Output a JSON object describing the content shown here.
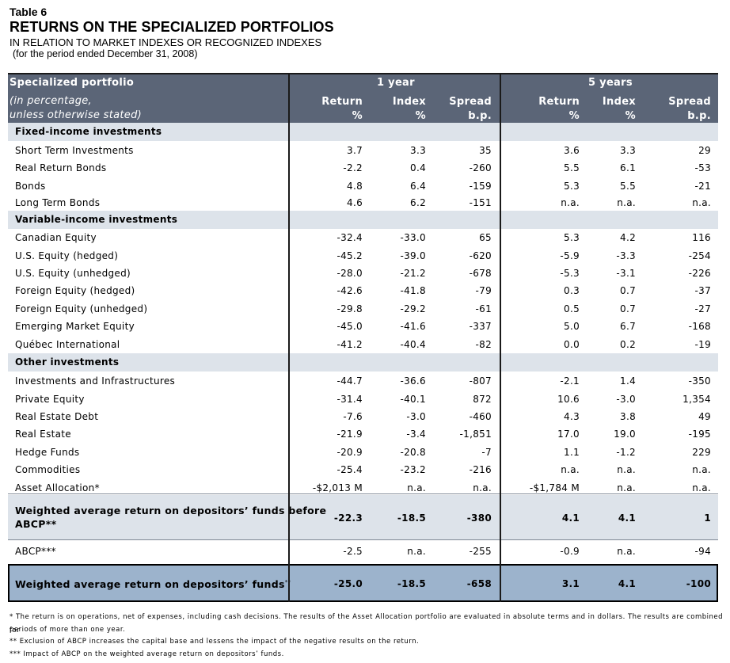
{
  "header": {
    "table_label": "Table 6",
    "title": "RETURNS ON THE SPECIALIZED PORTFOLIOS",
    "subtitle": "IN RELATION TO MARKET INDEXES OR RECOGNIZED INDEXES",
    "period": "(for the period ended December 31, 2008)"
  },
  "columns": {
    "portfolio_header": "Specialized portfolio",
    "units_line1": "(in percentage,",
    "units_line2": "unless otherwise stated)",
    "group1": "1 year",
    "group2": "5 years",
    "return": "Return",
    "index": "Index",
    "spread": "Spread",
    "pct": "%",
    "bp": "b.p."
  },
  "sections": [
    {
      "title": "Fixed-income investments",
      "rows": [
        {
          "name": "Short Term Investments",
          "values": [
            "3.7",
            "3.3",
            "35",
            "3.6",
            "3.3",
            "29"
          ]
        },
        {
          "name": "Real Return Bonds",
          "values": [
            "-2.2",
            "0.4",
            "-260",
            "5.5",
            "6.1",
            "-53"
          ]
        },
        {
          "name": "Bonds",
          "values": [
            "4.8",
            "6.4",
            "-159",
            "5.3",
            "5.5",
            "-21"
          ]
        },
        {
          "name": "Long Term Bonds",
          "values": [
            "4.6",
            "6.2",
            "-151",
            "n.a.",
            "n.a.",
            "n.a."
          ]
        }
      ]
    },
    {
      "title": "Variable-income investments",
      "rows": [
        {
          "name": "Canadian Equity",
          "values": [
            "-32.4",
            "-33.0",
            "65",
            "5.3",
            "4.2",
            "116"
          ]
        },
        {
          "name": "U.S. Equity (hedged)",
          "values": [
            "-45.2",
            "-39.0",
            "-620",
            "-5.9",
            "-3.3",
            "-254"
          ]
        },
        {
          "name": "U.S. Equity (unhedged)",
          "values": [
            "-28.0",
            "-21.2",
            "-678",
            "-5.3",
            "-3.1",
            "-226"
          ]
        },
        {
          "name": "Foreign Equity (hedged)",
          "values": [
            "-42.6",
            "-41.8",
            "-79",
            "0.3",
            "0.7",
            "-37"
          ]
        },
        {
          "name": "Foreign Equity (unhedged)",
          "values": [
            "-29.8",
            "-29.2",
            "-61",
            "0.5",
            "0.7",
            "-27"
          ]
        },
        {
          "name": "Emerging Market Equity",
          "values": [
            "-45.0",
            "-41.6",
            "-337",
            "5.0",
            "6.7",
            "-168"
          ]
        },
        {
          "name": "Québec International",
          "values": [
            "-41.2",
            "-40.4",
            "-82",
            "0.0",
            "0.2",
            "-19"
          ]
        }
      ]
    },
    {
      "title": "Other investments",
      "rows": [
        {
          "name": "Investments and Infrastructures",
          "values": [
            "-44.7",
            "-36.6",
            "-807",
            "-2.1",
            "1.4",
            "-350"
          ]
        },
        {
          "name": "Private Equity",
          "values": [
            "-31.4",
            "-40.1",
            "872",
            "10.6",
            "-3.0",
            "1,354"
          ]
        },
        {
          "name": "Real Estate Debt",
          "values": [
            "-7.6",
            "-3.0",
            "-460",
            "4.3",
            "3.8",
            "49"
          ]
        },
        {
          "name": "Real Estate",
          "values": [
            "-21.9",
            "-3.4",
            "-1,851",
            "17.0",
            "19.0",
            "-195"
          ]
        },
        {
          "name": "Hedge Funds",
          "values": [
            "-20.9",
            "-20.8",
            "-7",
            "1.1",
            "-1.2",
            "229"
          ]
        },
        {
          "name": "Commodities",
          "values": [
            "-25.4",
            "-23.2",
            "-216",
            "n.a.",
            "n.a.",
            "n.a."
          ]
        },
        {
          "name": "Asset Allocation*",
          "values": [
            "-$2,013 M",
            "n.a.",
            "n.a.",
            "-$1,784 M",
            "n.a.",
            "n.a."
          ]
        }
      ]
    }
  ],
  "weighted_before": {
    "line1": "Weighted average return on depositors’ funds before",
    "line2": "ABCP**",
    "values": [
      "-22.3",
      "-18.5",
      "-380",
      "4.1",
      "4.1",
      "1"
    ]
  },
  "abcp": {
    "name": "ABCP***",
    "values": [
      "-2.5",
      "n.a.",
      "-255",
      "-0.9",
      "n.a.",
      "-94"
    ]
  },
  "weighted_total": {
    "name": "Weighted average return on depositors’ funds",
    "sup": "**",
    "values": [
      "-25.0",
      "-18.5",
      "-658",
      "3.1",
      "4.1",
      "-100"
    ]
  },
  "footnotes": [
    "* The return is on operations, net of expenses, including cash decisions. The results of the Asset Allocation portfolio are evaluated in absolute terms and in dollars. The results are combined for",
    "periods of more than one year.",
    "** Exclusion of ABCP increases the capital base and lessens the impact of the negative results on the return.",
    "*** Impact of ABCP on the weighted average return on depositors’ funds."
  ],
  "colors": {
    "header_band": "#5b6577",
    "section_band": "#dde3ea",
    "final_band": "#9cb3cc"
  }
}
